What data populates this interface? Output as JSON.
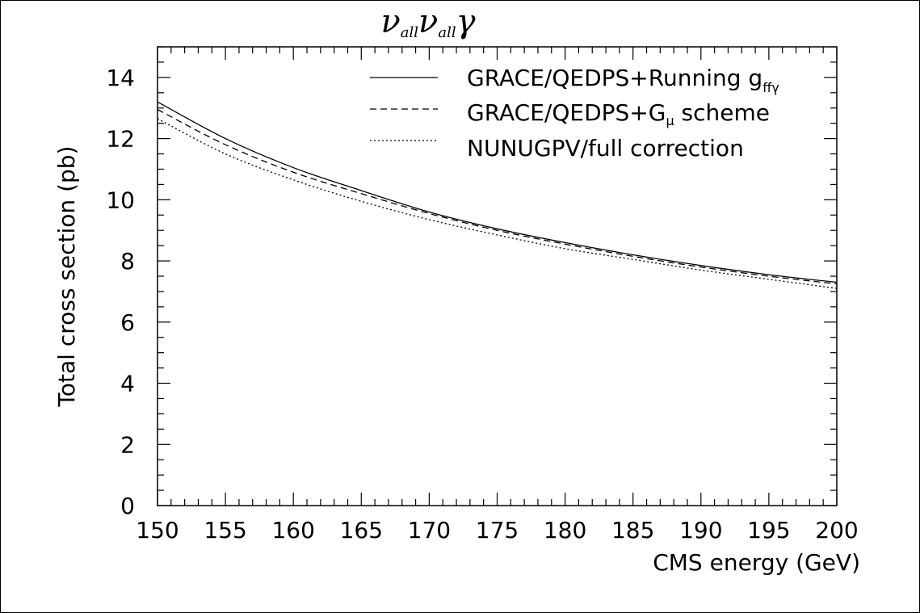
{
  "chart_data": {
    "type": "line",
    "title": {
      "nu1": "ν",
      "sub1": "all",
      "nu2": "ν",
      "sub2": "all",
      "gamma": "γ"
    },
    "xlabel": "CMS energy (GeV)",
    "ylabel": "Total cross section (pb)",
    "xlim": [
      150,
      200
    ],
    "ylim": [
      0,
      15
    ],
    "xticks": [
      "150",
      "155",
      "160",
      "165",
      "170",
      "175",
      "180",
      "185",
      "190",
      "195",
      "200"
    ],
    "yticks": [
      "0",
      "2",
      "4",
      "6",
      "8",
      "10",
      "12",
      "14"
    ],
    "grid": false,
    "legend_position": "top-right",
    "series": [
      {
        "name_main": "GRACE/QEDPS+Running g",
        "name_sub": "ffγ",
        "style": "solid",
        "x": [
          150,
          155,
          160,
          165,
          170,
          175,
          180,
          185,
          190,
          195,
          200
        ],
        "y": [
          13.2,
          12.0,
          11.05,
          10.3,
          9.6,
          9.05,
          8.6,
          8.2,
          7.85,
          7.55,
          7.3
        ]
      },
      {
        "name_main": "GRACE/QEDPS+G",
        "name_sub": "μ",
        "name_suffix": " scheme",
        "style": "dashed",
        "x": [
          150,
          155,
          160,
          165,
          170,
          175,
          180,
          185,
          190,
          195,
          200
        ],
        "y": [
          12.95,
          11.8,
          10.9,
          10.2,
          9.55,
          9.0,
          8.55,
          8.15,
          7.8,
          7.5,
          7.25
        ]
      },
      {
        "name_main": "NUNUGPV/full correction",
        "name_sub": "",
        "style": "dotted",
        "x": [
          150,
          155,
          160,
          165,
          170,
          175,
          180,
          185,
          190,
          195,
          200
        ],
        "y": [
          12.65,
          11.5,
          10.65,
          9.95,
          9.35,
          8.85,
          8.4,
          8.05,
          7.7,
          7.4,
          7.1
        ]
      }
    ]
  }
}
